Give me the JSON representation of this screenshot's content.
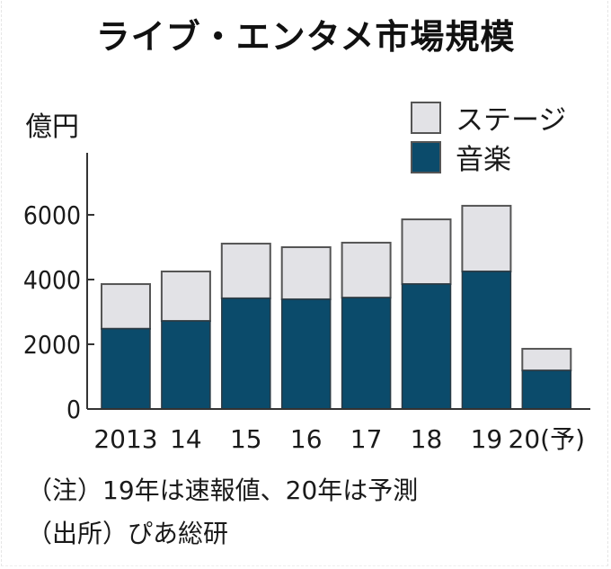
{
  "title": "ライブ・エンタメ市場規模",
  "unit_label": "億円",
  "legend": [
    {
      "label": "ステージ",
      "color": "#e2e2e6",
      "key": "stage"
    },
    {
      "label": "音楽",
      "color": "#0b4b6b",
      "key": "music"
    }
  ],
  "notes": [
    "（注）19年は速報値、20年は予測",
    "（出所）ぴあ総研"
  ],
  "colors": {
    "stage": "#e2e2e6",
    "music": "#0b4b6b",
    "bar_outline": "#555555",
    "axis": "#333333"
  },
  "chart_data": {
    "type": "bar",
    "stacked": true,
    "title": "ライブ・エンタメ市場規模",
    "xlabel": "",
    "ylabel": "億円",
    "ylim": [
      0,
      7000
    ],
    "yticks": [
      0,
      2000,
      4000,
      6000
    ],
    "ytick_labels": [
      "0",
      "2000",
      "4000",
      "6000"
    ],
    "categories": [
      "2013",
      "14",
      "15",
      "16",
      "17",
      "18",
      "19",
      "20(予)"
    ],
    "series": [
      {
        "name": "音楽",
        "values": [
          2480,
          2720,
          3420,
          3390,
          3440,
          3860,
          4250,
          1190
        ]
      },
      {
        "name": "ステージ",
        "values": [
          1380,
          1530,
          1690,
          1610,
          1700,
          2000,
          2030,
          670
        ]
      }
    ],
    "totals": [
      3860,
      4250,
      5110,
      5000,
      5140,
      5860,
      6280,
      1860
    ],
    "legend_position": "top-right",
    "grid": false,
    "annotations": [
      "（注）19年は速報値、20年は予測",
      "（出所）ぴあ総研"
    ]
  }
}
